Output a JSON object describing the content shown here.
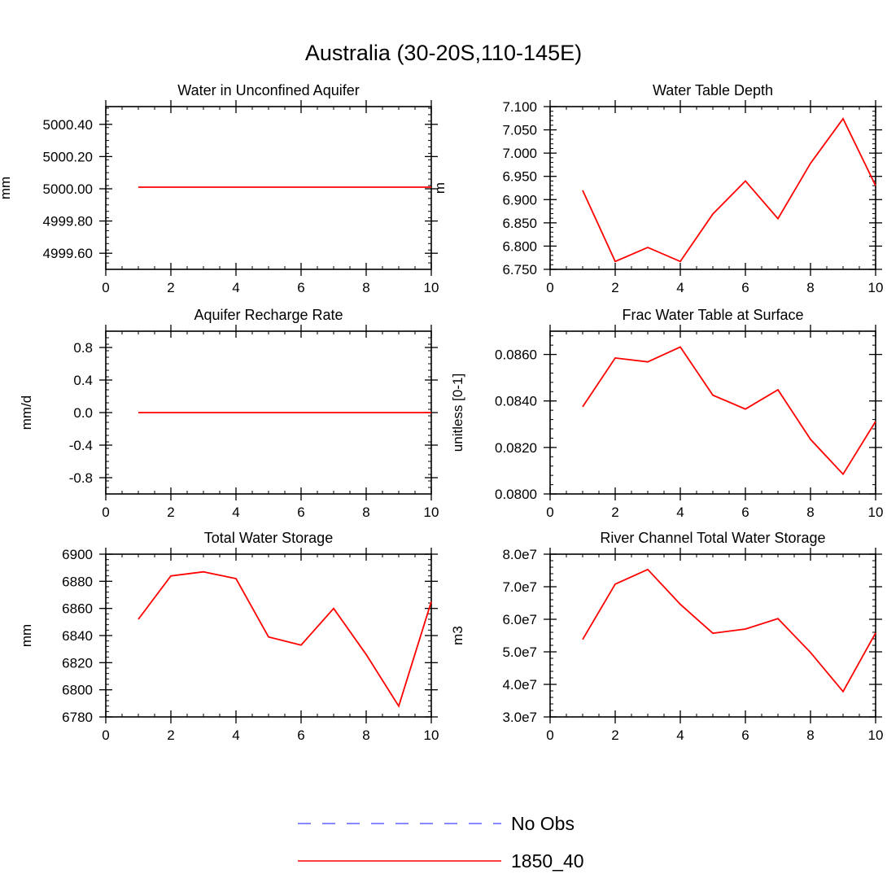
{
  "title": "Australia (30-20S,110-145E)",
  "colors": {
    "model": "#ff0000",
    "obs": "#6060ff",
    "axis": "#000000"
  },
  "legend": {
    "entries": [
      {
        "label": "No Obs",
        "style": "dashed",
        "color": "#6060ff"
      },
      {
        "label": "1850_40",
        "style": "solid",
        "color": "#ff0000"
      }
    ]
  },
  "chart_data": [
    {
      "type": "line",
      "title": "Water in Unconfined Aquifer",
      "ylabel": "mm",
      "xlim": [
        0,
        10
      ],
      "ylim": [
        4999.5,
        5000.51
      ],
      "xticks": [
        "0",
        "2",
        "4",
        "6",
        "8",
        "10"
      ],
      "yticks": [
        {
          "v": 5000.4,
          "label": "5000.40"
        },
        {
          "v": 5000.2,
          "label": "5000.20"
        },
        {
          "v": 5000.0,
          "label": "5000.00"
        },
        {
          "v": 4999.8,
          "label": "4999.80"
        },
        {
          "v": 4999.6,
          "label": "4999.60"
        }
      ],
      "series": [
        {
          "name": "1850_40",
          "x": [
            1,
            2,
            3,
            4,
            5,
            6,
            7,
            8,
            9,
            10
          ],
          "y": [
            5000.01,
            5000.01,
            5000.01,
            5000.01,
            5000.01,
            5000.01,
            5000.01,
            5000.01,
            5000.01,
            5000.01
          ]
        }
      ]
    },
    {
      "type": "line",
      "title": "Water Table Depth",
      "ylabel": "m",
      "xlim": [
        0,
        10
      ],
      "ylim": [
        6.75,
        7.1
      ],
      "xticks": [
        "0",
        "2",
        "4",
        "6",
        "8",
        "10"
      ],
      "yticks": [
        {
          "v": 7.1,
          "label": "7.100"
        },
        {
          "v": 7.05,
          "label": "7.050"
        },
        {
          "v": 7.0,
          "label": "7.000"
        },
        {
          "v": 6.95,
          "label": "6.950"
        },
        {
          "v": 6.9,
          "label": "6.900"
        },
        {
          "v": 6.85,
          "label": "6.850"
        },
        {
          "v": 6.8,
          "label": "6.800"
        },
        {
          "v": 6.75,
          "label": "6.750"
        }
      ],
      "series": [
        {
          "name": "1850_40",
          "x": [
            1,
            2,
            3,
            4,
            5,
            6,
            7,
            8,
            9,
            10
          ],
          "y": [
            6.92,
            6.767,
            6.797,
            6.767,
            6.869,
            6.94,
            6.859,
            6.978,
            7.074,
            6.93
          ]
        }
      ]
    },
    {
      "type": "line",
      "title": "Aquifer Recharge Rate",
      "ylabel": "mm/d",
      "xlim": [
        0,
        10
      ],
      "ylim": [
        -1.0,
        1.0
      ],
      "xticks": [
        "0",
        "2",
        "4",
        "6",
        "8",
        "10"
      ],
      "yticks": [
        {
          "v": 0.8,
          "label": "0.8"
        },
        {
          "v": 0.4,
          "label": "0.4"
        },
        {
          "v": 0.0,
          "label": "0.0"
        },
        {
          "v": -0.4,
          "label": "-0.4"
        },
        {
          "v": -0.8,
          "label": "-0.8"
        }
      ],
      "series": [
        {
          "name": "1850_40",
          "x": [
            1,
            2,
            3,
            4,
            5,
            6,
            7,
            8,
            9,
            10
          ],
          "y": [
            0,
            0,
            0,
            0,
            0,
            0,
            0,
            0,
            0,
            0
          ]
        }
      ]
    },
    {
      "type": "line",
      "title": "Frac Water Table at Surface",
      "ylabel": "unitless [0-1]",
      "xlim": [
        0,
        10
      ],
      "ylim": [
        0.08,
        0.087
      ],
      "xticks": [
        "0",
        "2",
        "4",
        "6",
        "8",
        "10"
      ],
      "yticks": [
        {
          "v": 0.086,
          "label": "0.0860"
        },
        {
          "v": 0.084,
          "label": "0.0840"
        },
        {
          "v": 0.082,
          "label": "0.0820"
        },
        {
          "v": 0.08,
          "label": "0.0800"
        }
      ],
      "series": [
        {
          "name": "1850_40",
          "x": [
            1,
            2,
            3,
            4,
            5,
            6,
            7,
            8,
            9,
            10
          ],
          "y": [
            0.08375,
            0.08585,
            0.08568,
            0.08632,
            0.08425,
            0.08365,
            0.08448,
            0.08235,
            0.08085,
            0.08312
          ]
        }
      ]
    },
    {
      "type": "line",
      "title": "Total Water Storage",
      "ylabel": "mm",
      "xlim": [
        0,
        10
      ],
      "ylim": [
        6780,
        6900
      ],
      "xticks": [
        "0",
        "2",
        "4",
        "6",
        "8",
        "10"
      ],
      "yticks": [
        {
          "v": 6900,
          "label": "6900"
        },
        {
          "v": 6880,
          "label": "6880"
        },
        {
          "v": 6860,
          "label": "6860"
        },
        {
          "v": 6840,
          "label": "6840"
        },
        {
          "v": 6820,
          "label": "6820"
        },
        {
          "v": 6800,
          "label": "6800"
        },
        {
          "v": 6780,
          "label": "6780"
        }
      ],
      "series": [
        {
          "name": "1850_40",
          "x": [
            1,
            2,
            3,
            4,
            5,
            6,
            7,
            8,
            9,
            10
          ],
          "y": [
            6852,
            6884,
            6887,
            6882,
            6839,
            6833,
            6860,
            6826,
            6788,
            6865
          ]
        }
      ]
    },
    {
      "type": "line",
      "title": "River Channel Total Water Storage",
      "ylabel": "m3",
      "xlim": [
        0,
        10
      ],
      "ylim": [
        30000000,
        80000000
      ],
      "xticks": [
        "0",
        "2",
        "4",
        "6",
        "8",
        "10"
      ],
      "yticks": [
        {
          "v": 80000000,
          "label": "8.0e7"
        },
        {
          "v": 70000000,
          "label": "7.0e7"
        },
        {
          "v": 60000000,
          "label": "6.0e7"
        },
        {
          "v": 50000000,
          "label": "5.0e7"
        },
        {
          "v": 40000000,
          "label": "4.0e7"
        },
        {
          "v": 30000000,
          "label": "3.0e7"
        }
      ],
      "series": [
        {
          "name": "1850_40",
          "x": [
            1,
            2,
            3,
            4,
            5,
            6,
            7,
            8,
            9,
            10
          ],
          "y": [
            53800000,
            70800000,
            75300000,
            64600000,
            55700000,
            57000000,
            60200000,
            49800000,
            37800000,
            55800000
          ]
        }
      ]
    }
  ]
}
